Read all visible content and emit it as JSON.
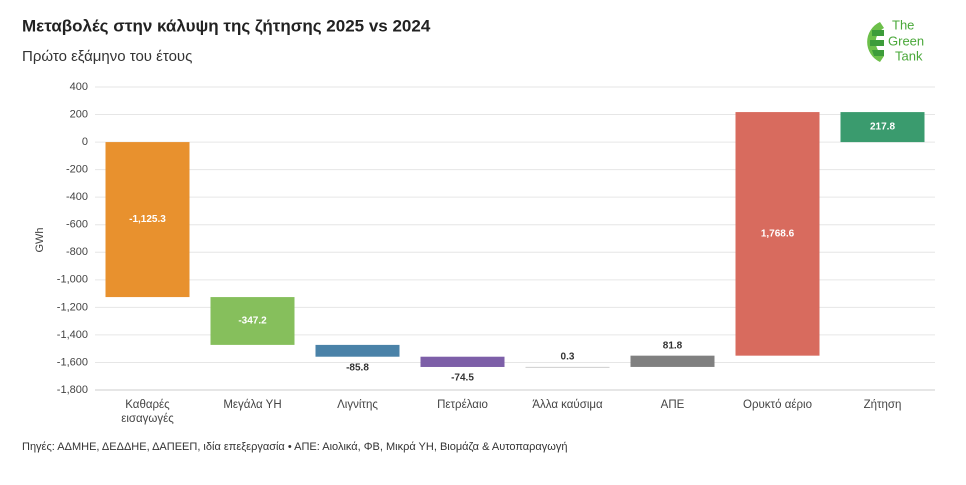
{
  "chart_data": {
    "type": "waterfall",
    "title": "Μεταβολές στην κάλυψη της ζήτησης 2025 vs 2024",
    "subtitle": "Πρώτο εξάμηνο του έτους",
    "y_label": "GWh",
    "categories": [
      "Καθαρές εισαγωγές",
      "Μεγάλα ΥΗ",
      "Λιγνίτης",
      "Πετρέλαιο",
      "Άλλα καύσιμα",
      "ΑΠΕ",
      "Ορυκτό αέριο",
      "Ζήτηση"
    ],
    "values": [
      -1125.3,
      -347.2,
      -85.8,
      -74.5,
      0.3,
      81.8,
      1768.6,
      217.8
    ],
    "value_labels": [
      "-1,125.3",
      "-347.2",
      "-85.8",
      "-74.5",
      "0.3",
      "81.8",
      "1,768.6",
      "217.8"
    ],
    "is_total": [
      false,
      false,
      false,
      false,
      false,
      false,
      false,
      true
    ],
    "colors": [
      "#e8912e",
      "#86bf5c",
      "#4a82a8",
      "#7d5fa8",
      "#9e9e9e",
      "#808080",
      "#d86b5e",
      "#3a9b6e"
    ],
    "ylim": [
      -1800,
      400
    ],
    "yticks": [
      400,
      200,
      0,
      -200,
      -400,
      -600,
      -800,
      {
        "value": -1000,
        "label": "-1,000"
      },
      {
        "value": -1200,
        "label": "-1,200"
      },
      {
        "value": -1400,
        "label": "-1,400"
      },
      {
        "value": -1600,
        "label": "-1,600"
      },
      {
        "value": -1800,
        "label": "-1,800"
      }
    ],
    "grid": true,
    "source": "Πηγές: ΑΔΜΗΕ, ΔΕΔΔΗΕ, ΔΑΠΕΕΠ, ιδία επεξεργασία • ΑΠΕ: Αιολικά, ΦΒ, Μικρά ΥΗ, Βιομάζα & Αυτοπαραγωγή",
    "logo": [
      "The",
      "Green",
      "Tank"
    ]
  }
}
